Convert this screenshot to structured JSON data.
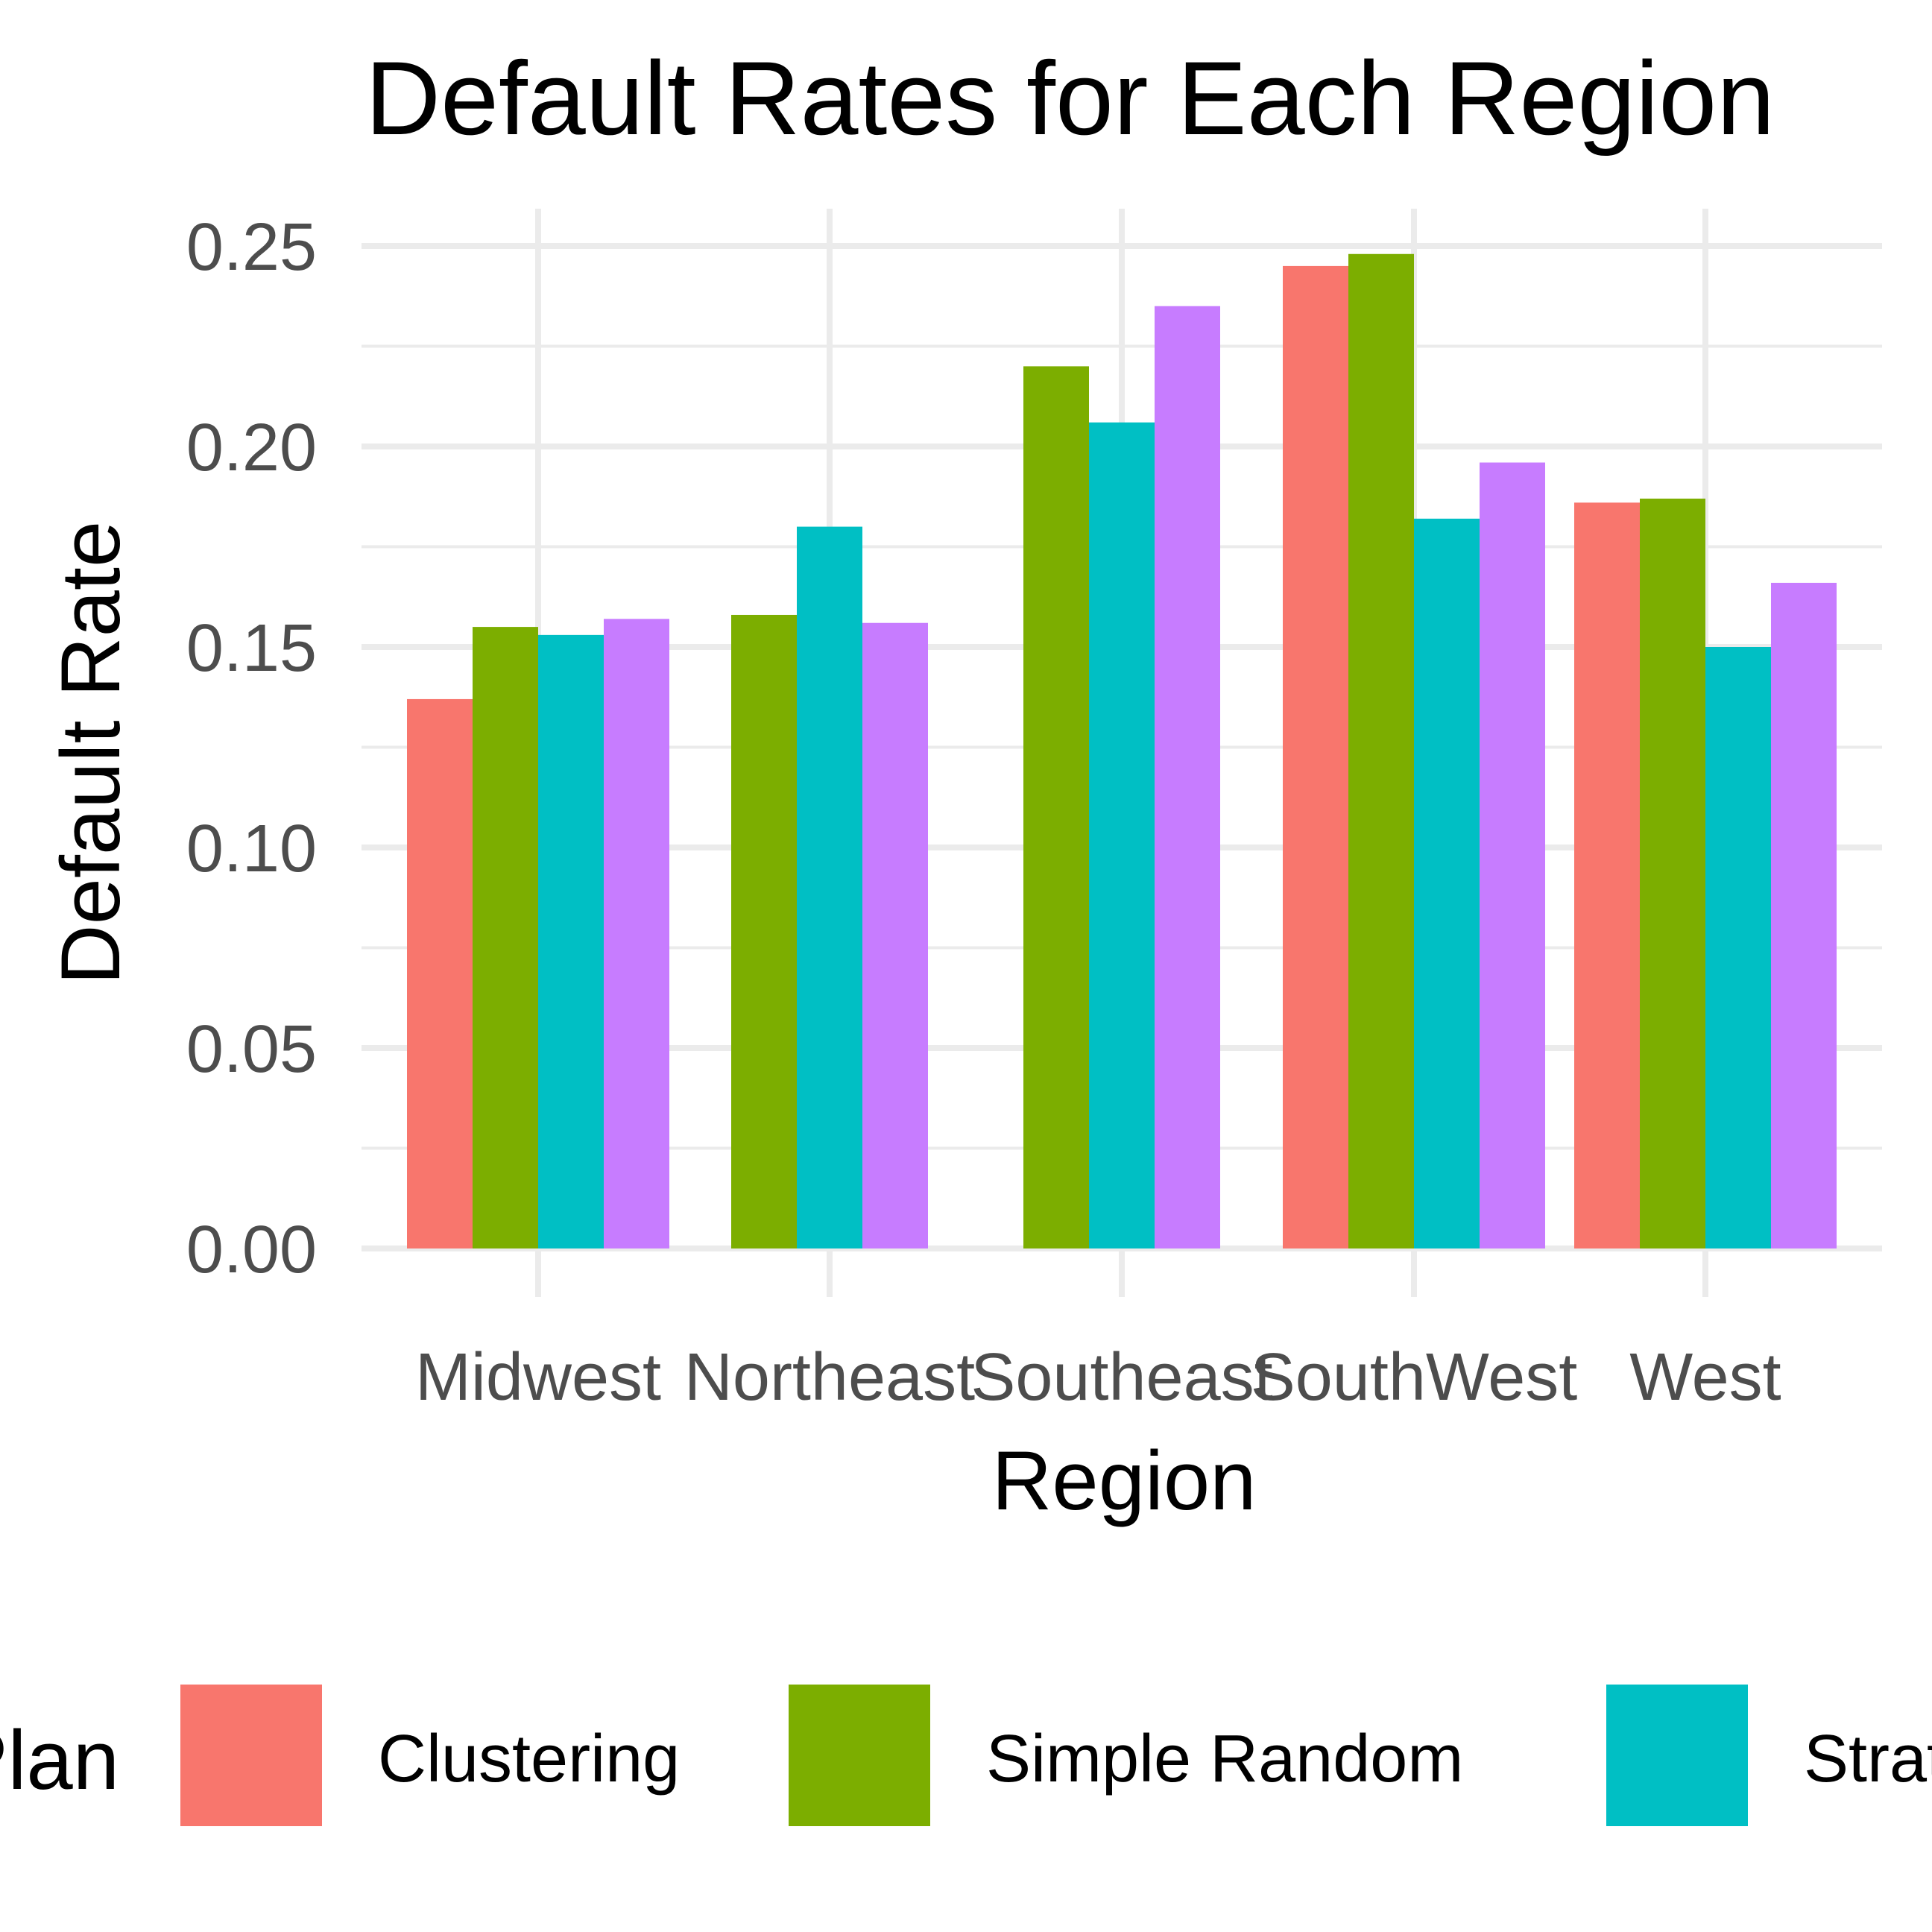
{
  "chart_data": {
    "type": "bar",
    "title": "Default Rates for Each Region",
    "xlabel": "Region",
    "ylabel": "Default Rate",
    "categories": [
      "Midwest",
      "Northeast",
      "Southeast",
      "SouthWest",
      "West"
    ],
    "ylim": [
      0,
      0.25
    ],
    "yticks": [
      "0.00",
      "0.05",
      "0.10",
      "0.15",
      "0.20",
      "0.25"
    ],
    "grid": true,
    "legend": {
      "title": "Plan",
      "position": "bottom"
    },
    "series": [
      {
        "name": "Clustering",
        "color": "#F8766D",
        "values": [
          0.137,
          null,
          null,
          0.245,
          0.186
        ]
      },
      {
        "name": "Simple Random",
        "color": "#7CAE00",
        "values": [
          0.155,
          0.158,
          0.22,
          0.248,
          0.187
        ]
      },
      {
        "name": "Stratified",
        "color": "#00BFC4",
        "values": [
          0.153,
          0.18,
          0.206,
          0.182,
          0.15
        ]
      },
      {
        "name": "",
        "color": "#C77CFF",
        "values": [
          0.157,
          0.156,
          0.235,
          0.196,
          0.166
        ]
      }
    ]
  }
}
